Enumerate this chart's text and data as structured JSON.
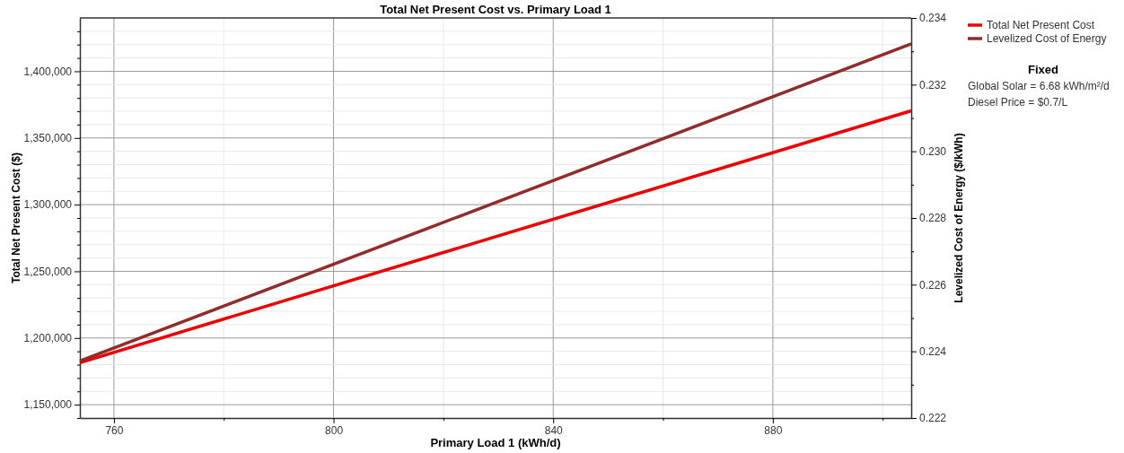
{
  "chart_data": {
    "type": "line",
    "title": "Total Net Present Cost vs. Primary Load 1",
    "xlabel": "Primary Load 1 (kWh/d)",
    "ylabel": "Total Net Present Cost ($)",
    "y2label": "Levelized Cost of Energy ($/kWh)",
    "x": [
      753.8,
      905.2
    ],
    "series": [
      {
        "name": "Total Net Present Cost",
        "color": "#ee0000",
        "values": [
          1181500,
          1370400
        ]
      },
      {
        "name": "Levelized Cost of Energy",
        "color": "#922b2b",
        "values": [
          0.22371,
          0.23322
        ],
        "axis": "y2"
      }
    ],
    "xlim": [
      753.8,
      905.2
    ],
    "xticks": [
      760,
      {
        "value": 780,
        "label": null
      },
      800,
      {
        "value": 820,
        "label": null
      },
      840,
      {
        "value": 860,
        "label": null
      },
      880,
      {
        "value": 900,
        "label": null
      }
    ],
    "ylim": [
      1140000,
      1440000
    ],
    "yticks": [
      {
        "value": 1140000,
        "label": null
      },
      {
        "value": 1150000,
        "label": "1,150,000"
      },
      {
        "value": 1160000,
        "label": null
      },
      {
        "value": 1170000,
        "label": null
      },
      {
        "value": 1180000,
        "label": null
      },
      {
        "value": 1190000,
        "label": null
      },
      {
        "value": 1200000,
        "label": "1,200,000"
      },
      {
        "value": 1210000,
        "label": null
      },
      {
        "value": 1220000,
        "label": null
      },
      {
        "value": 1230000,
        "label": null
      },
      {
        "value": 1240000,
        "label": null
      },
      {
        "value": 1250000,
        "label": "1,250,000"
      },
      {
        "value": 1260000,
        "label": null
      },
      {
        "value": 1270000,
        "label": null
      },
      {
        "value": 1280000,
        "label": null
      },
      {
        "value": 1290000,
        "label": null
      },
      {
        "value": 1300000,
        "label": "1,300,000"
      },
      {
        "value": 1310000,
        "label": null
      },
      {
        "value": 1320000,
        "label": null
      },
      {
        "value": 1330000,
        "label": null
      },
      {
        "value": 1340000,
        "label": null
      },
      {
        "value": 1350000,
        "label": "1,350,000"
      },
      {
        "value": 1360000,
        "label": null
      },
      {
        "value": 1370000,
        "label": null
      },
      {
        "value": 1380000,
        "label": null
      },
      {
        "value": 1390000,
        "label": null
      },
      {
        "value": 1400000,
        "label": "1,400,000"
      },
      {
        "value": 1410000,
        "label": null
      },
      {
        "value": 1420000,
        "label": null
      },
      {
        "value": 1430000,
        "label": null
      }
    ],
    "y2lim": [
      0.222,
      0.234
    ],
    "y2ticks": [
      0.222,
      {
        "value": 0.223,
        "label": null
      },
      0.224,
      {
        "value": 0.225,
        "label": null
      },
      0.226,
      {
        "value": 0.227,
        "label": null
      },
      0.228,
      {
        "value": 0.229,
        "label": null
      },
      {
        "value": 0.23,
        "label": "0.230"
      },
      {
        "value": 0.231,
        "label": null
      },
      0.232,
      {
        "value": 0.233,
        "label": null
      },
      0.234
    ],
    "grid": true,
    "legend": "top right",
    "line_style": "solid",
    "marker": "none",
    "annotations": [
      "Fixed",
      "Global Solar = 6.68 kWh/m²/d",
      "Diesel Price = $0.7/L"
    ]
  }
}
